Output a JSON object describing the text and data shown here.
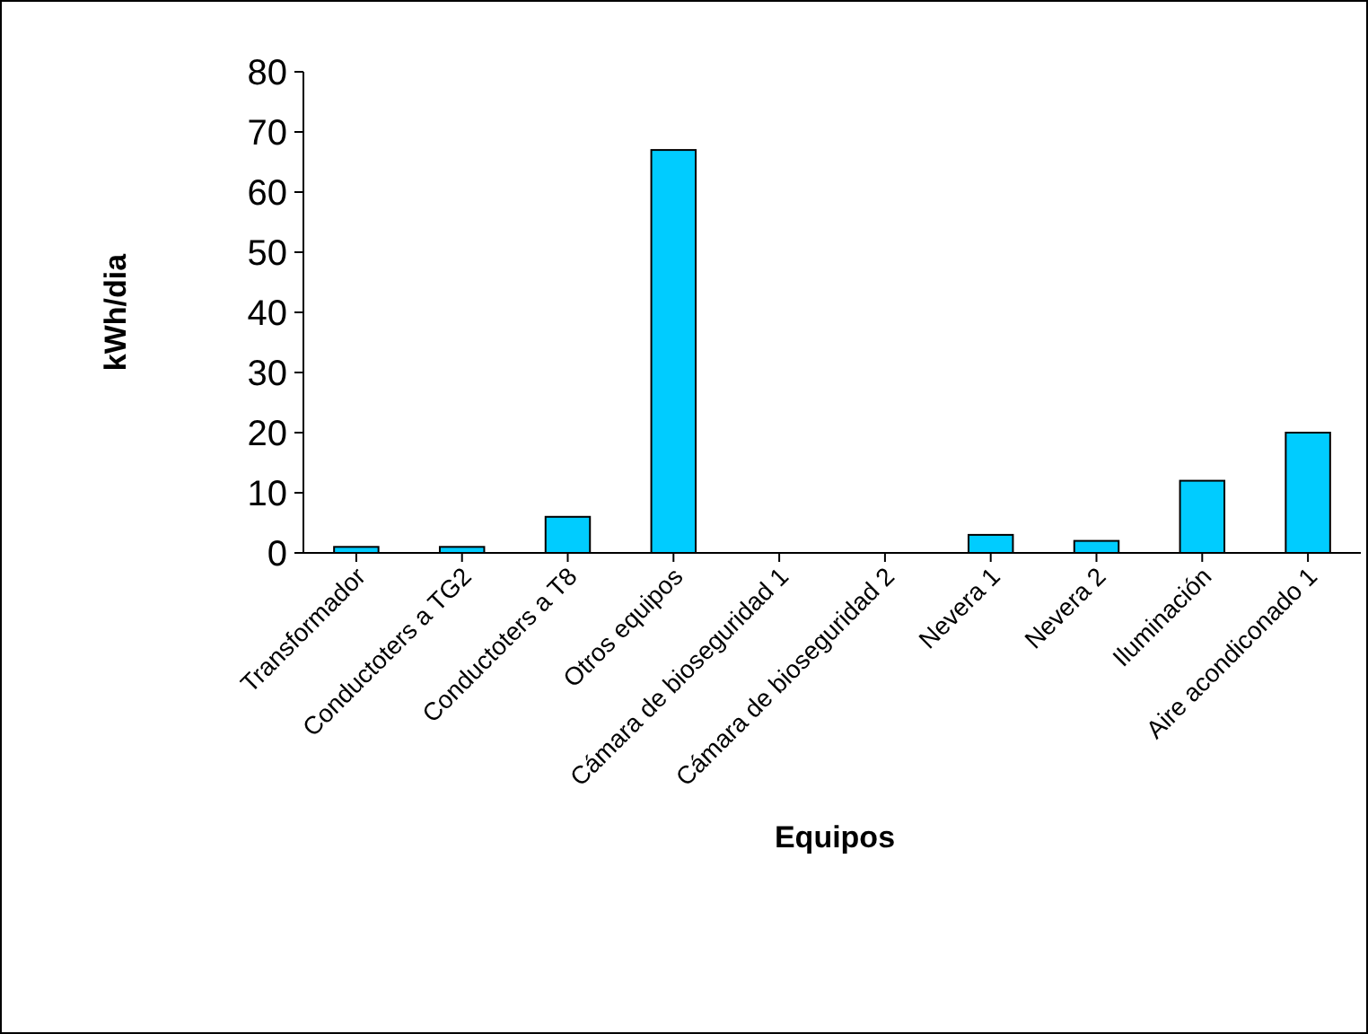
{
  "chart_data": {
    "type": "bar",
    "xlabel": "Equipos",
    "ylabel": "kWh/dia",
    "categories": [
      "Transformador",
      "Conductoters a TG2",
      "Conductoters a T8",
      "Otros equipos",
      "Cámara de bioseguridad 1",
      "Cámara de bioseguridad 2",
      "Nevera 1",
      "Nevera 2",
      "Iluminación",
      "Aire acondiconado 1"
    ],
    "values": [
      1,
      1,
      6,
      67,
      0,
      0,
      3,
      2,
      12,
      20
    ],
    "color": "#00ccff",
    "ylim": [
      0,
      80
    ],
    "yticks": [
      0,
      10,
      20,
      30,
      40,
      50,
      60,
      70,
      80
    ],
    "grid": false
  }
}
